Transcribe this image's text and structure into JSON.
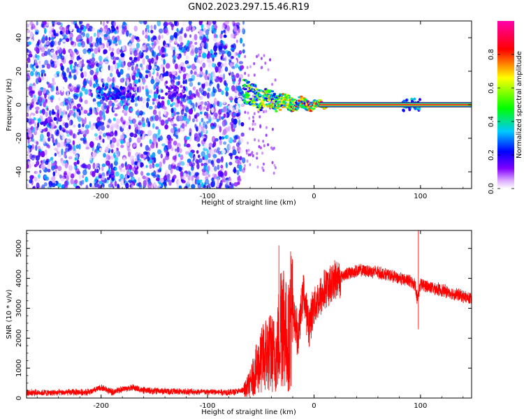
{
  "title": "GN02.2023.297.15.46.R19",
  "chart_data": [
    {
      "type": "heatmap",
      "xlabel": "Height of straight line (km)",
      "ylabel": "Frequency (Hz)",
      "xlim": [
        -270,
        148
      ],
      "ylim": [
        -50,
        50
      ],
      "x_ticks": [
        -200,
        -100,
        0,
        100
      ],
      "y_ticks": [
        -40,
        -20,
        0,
        20,
        40
      ],
      "colorbar": {
        "label": "Normalized spectral amplitude",
        "range": [
          0,
          1
        ],
        "ticks": [
          0.0,
          0.2,
          0.4,
          0.6,
          0.8
        ],
        "colors": [
          "#ffffff",
          "#d9a6ff",
          "#8000ff",
          "#0000ff",
          "#00c8ff",
          "#00ff00",
          "#ffff00",
          "#ff0000",
          "#ff00aa"
        ]
      },
      "noise_region": {
        "x_range": [
          -270,
          -66
        ],
        "freq_range": [
          -50,
          50
        ],
        "amplitude_range": [
          0.0,
          0.35
        ]
      },
      "signal_ridge": [
        {
          "x": -66,
          "freq": 9,
          "amplitude": 0.45
        },
        {
          "x": -60,
          "freq": 6,
          "amplitude": 0.55
        },
        {
          "x": -50,
          "freq": 4,
          "amplitude": 0.6
        },
        {
          "x": -40,
          "freq": 3,
          "amplitude": 0.65
        },
        {
          "x": -30,
          "freq": 1.5,
          "amplitude": 0.7
        },
        {
          "x": -20,
          "freq": 1,
          "amplitude": 0.75
        },
        {
          "x": -10,
          "freq": 0.5,
          "amplitude": 0.8
        },
        {
          "x": 0,
          "freq": 0,
          "amplitude": 0.85
        },
        {
          "x": 10,
          "freq": 0,
          "amplitude": 0.9
        },
        {
          "x": 50,
          "freq": 0,
          "amplitude": 0.95
        },
        {
          "x": 100,
          "freq": 0,
          "amplitude": 0.95
        },
        {
          "x": 148,
          "freq": 0,
          "amplitude": 0.95
        }
      ],
      "secondary_blobs": [
        {
          "x": -195,
          "freq": 7,
          "amplitude": 0.25
        },
        {
          "x": -178,
          "freq": 7,
          "amplitude": 0.2
        },
        {
          "x": -130,
          "freq": 8,
          "amplitude": 0.15
        },
        {
          "x": 92,
          "freq": 0,
          "amplitude": 0.3
        }
      ]
    },
    {
      "type": "line",
      "xlabel": "Height of straight line (km)",
      "ylabel": "SNR (10 * v/v)",
      "xlim": [
        -270,
        148
      ],
      "ylim": [
        0,
        5600
      ],
      "x_ticks": [
        -200,
        -100,
        0,
        100
      ],
      "y_ticks": [
        0,
        1000,
        2000,
        3000,
        4000,
        5000
      ],
      "line_color": "#ff0000",
      "series": [
        {
          "x": [
            -270,
            -240,
            -210,
            -200,
            -190,
            -180,
            -170,
            -160,
            -130,
            -100,
            -75,
            -66,
            -60,
            -55,
            -50,
            -45,
            -40,
            -35,
            -30,
            -25,
            -20,
            -15,
            -10,
            -5,
            0,
            5,
            10,
            15,
            20,
            30,
            40,
            50,
            60,
            70,
            80,
            90,
            95,
            97,
            100,
            110,
            120,
            130,
            140,
            148
          ],
          "y": [
            180,
            180,
            200,
            350,
            200,
            300,
            350,
            250,
            220,
            200,
            200,
            250,
            500,
            900,
            1200,
            1500,
            1500,
            1400,
            3000,
            1800,
            3000,
            2000,
            3600,
            2400,
            3100,
            3300,
            3600,
            3800,
            3950,
            4150,
            4250,
            4250,
            4200,
            4100,
            4000,
            3900,
            3800,
            3300,
            3800,
            3700,
            3600,
            3500,
            3400,
            3300
          ]
        }
      ],
      "spikes": [
        {
          "x": -33,
          "y": 5100
        },
        {
          "x": -22,
          "y": 4900
        },
        {
          "x": 98,
          "y": 5600
        },
        {
          "x": 98,
          "y": 2300
        }
      ]
    }
  ]
}
